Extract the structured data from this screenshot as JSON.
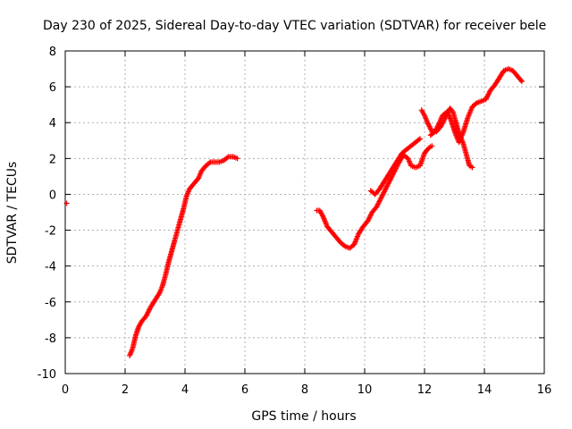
{
  "chart_data": {
    "type": "scatter",
    "title": "Day 230 of 2025, Sidereal Day-to-day VTEC variation (SDTVAR) for receiver bele",
    "xlabel": "GPS time / hours",
    "ylabel": "SDTVAR / TECUs",
    "xlim": [
      0,
      16
    ],
    "ylim": [
      -10,
      8
    ],
    "xticks": [
      "0",
      "2",
      "4",
      "6",
      "8",
      "10",
      "12",
      "14",
      "16"
    ],
    "yticks": [
      "-10",
      "-8",
      "-6",
      "-4",
      "-2",
      "0",
      "2",
      "4",
      "6",
      "8"
    ],
    "grid": true,
    "marker": "+",
    "series_color": "#ff0000",
    "series": [
      {
        "segments": [
          [
            [
              0.05,
              -0.5
            ]
          ],
          [
            [
              2.15,
              -9.0
            ],
            [
              2.25,
              -8.6
            ],
            [
              2.35,
              -7.9
            ],
            [
              2.45,
              -7.4
            ],
            [
              2.55,
              -7.1
            ],
            [
              2.7,
              -6.8
            ],
            [
              2.85,
              -6.3
            ],
            [
              3.0,
              -5.9
            ],
            [
              3.15,
              -5.5
            ],
            [
              3.25,
              -5.1
            ],
            [
              3.35,
              -4.5
            ],
            [
              3.45,
              -3.8
            ],
            [
              3.55,
              -3.2
            ],
            [
              3.65,
              -2.6
            ],
            [
              3.75,
              -2.0
            ],
            [
              3.85,
              -1.4
            ],
            [
              3.95,
              -0.8
            ],
            [
              4.05,
              -0.1
            ],
            [
              4.15,
              0.3
            ],
            [
              4.3,
              0.6
            ],
            [
              4.45,
              0.9
            ],
            [
              4.55,
              1.3
            ],
            [
              4.7,
              1.6
            ],
            [
              4.85,
              1.8
            ],
            [
              5.0,
              1.8
            ],
            [
              5.15,
              1.8
            ],
            [
              5.3,
              1.9
            ],
            [
              5.45,
              2.1
            ],
            [
              5.6,
              2.1
            ],
            [
              5.75,
              2.0
            ]
          ],
          [
            [
              8.4,
              -0.9
            ],
            [
              8.5,
              -0.9
            ],
            [
              8.6,
              -1.2
            ],
            [
              8.75,
              -1.8
            ],
            [
              8.9,
              -2.1
            ],
            [
              9.05,
              -2.4
            ],
            [
              9.2,
              -2.7
            ],
            [
              9.35,
              -2.9
            ],
            [
              9.5,
              -3.0
            ],
            [
              9.65,
              -2.8
            ],
            [
              9.8,
              -2.2
            ],
            [
              9.95,
              -1.8
            ],
            [
              10.1,
              -1.5
            ],
            [
              10.25,
              -1.0
            ],
            [
              10.4,
              -0.7
            ],
            [
              10.55,
              -0.2
            ],
            [
              10.7,
              0.3
            ],
            [
              10.85,
              0.8
            ],
            [
              11.0,
              1.3
            ],
            [
              11.15,
              1.8
            ],
            [
              11.3,
              2.2
            ],
            [
              11.45,
              2.0
            ],
            [
              11.55,
              1.6
            ],
            [
              11.7,
              1.5
            ],
            [
              11.85,
              1.6
            ],
            [
              12.0,
              2.3
            ],
            [
              12.15,
              2.6
            ],
            [
              12.25,
              2.7
            ]
          ],
          [
            [
              10.2,
              0.2
            ],
            [
              10.35,
              0.0
            ],
            [
              10.5,
              0.3
            ],
            [
              10.65,
              0.7
            ],
            [
              10.8,
              1.1
            ],
            [
              10.95,
              1.5
            ],
            [
              11.1,
              1.9
            ],
            [
              11.25,
              2.3
            ],
            [
              11.4,
              2.5
            ],
            [
              11.55,
              2.7
            ],
            [
              11.7,
              2.9
            ],
            [
              11.85,
              3.1
            ]
          ],
          [
            [
              11.9,
              4.7
            ],
            [
              12.0,
              4.4
            ],
            [
              12.1,
              4.0
            ],
            [
              12.25,
              3.5
            ],
            [
              12.4,
              3.5
            ],
            [
              12.55,
              3.8
            ],
            [
              12.7,
              4.3
            ],
            [
              12.85,
              4.8
            ],
            [
              12.95,
              4.6
            ],
            [
              13.05,
              4.0
            ],
            [
              13.15,
              3.4
            ],
            [
              13.3,
              2.8
            ],
            [
              13.4,
              2.2
            ],
            [
              13.5,
              1.6
            ],
            [
              13.6,
              1.5
            ]
          ],
          [
            [
              12.2,
              3.3
            ],
            [
              12.35,
              3.5
            ],
            [
              12.5,
              4.0
            ],
            [
              12.6,
              4.4
            ],
            [
              12.75,
              4.6
            ],
            [
              12.85,
              4.3
            ],
            [
              12.95,
              3.8
            ],
            [
              13.05,
              3.3
            ],
            [
              13.15,
              2.9
            ],
            [
              13.3,
              3.5
            ],
            [
              13.45,
              4.3
            ],
            [
              13.6,
              4.9
            ],
            [
              13.75,
              5.1
            ],
            [
              13.9,
              5.2
            ],
            [
              14.05,
              5.3
            ],
            [
              14.2,
              5.8
            ],
            [
              14.35,
              6.1
            ],
            [
              14.5,
              6.5
            ],
            [
              14.65,
              6.9
            ],
            [
              14.8,
              7.0
            ],
            [
              14.95,
              6.9
            ],
            [
              15.1,
              6.6
            ],
            [
              15.25,
              6.3
            ]
          ]
        ]
      }
    ]
  }
}
